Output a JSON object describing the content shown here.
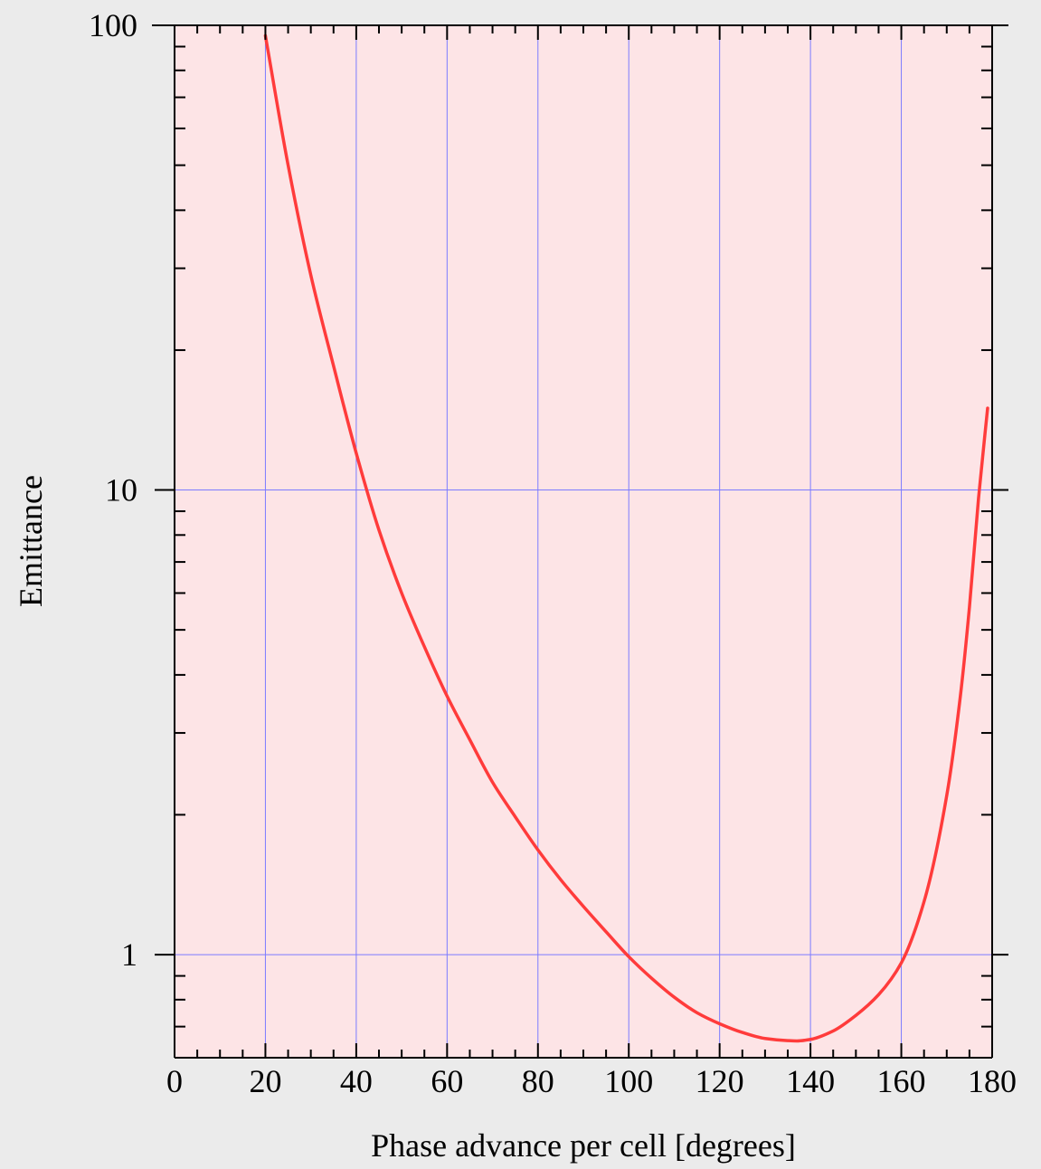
{
  "chart_data": {
    "type": "line",
    "title": "",
    "xlabel": "Phase advance per cell [degrees]",
    "ylabel": "Emittance",
    "xlim": [
      0,
      180
    ],
    "ylim": [
      0.6,
      100
    ],
    "yscale": "log",
    "grid": true,
    "x_ticks": [
      0,
      20,
      40,
      60,
      80,
      100,
      120,
      140,
      160,
      180
    ],
    "x_tick_labels": [
      "0",
      "20",
      "40",
      "60",
      "80",
      "100",
      "120",
      "140",
      "160",
      "180"
    ],
    "y_ticks": [
      1,
      10,
      100
    ],
    "y_tick_labels": [
      "1",
      "10",
      "100"
    ],
    "series": [
      {
        "color": "#ff3b3b",
        "x": [
          20,
          25,
          30,
          35,
          40,
          45,
          50,
          55,
          60,
          65,
          70,
          75,
          80,
          85,
          90,
          95,
          100,
          105,
          110,
          115,
          120,
          125,
          130,
          135,
          137,
          140,
          145,
          150,
          155,
          160,
          165,
          170,
          173,
          175,
          177,
          179
        ],
        "y": [
          95,
          50,
          29,
          18.5,
          12,
          8.2,
          6.0,
          4.6,
          3.6,
          2.9,
          2.35,
          1.98,
          1.68,
          1.45,
          1.27,
          1.12,
          0.99,
          0.89,
          0.81,
          0.75,
          0.71,
          0.68,
          0.66,
          0.653,
          0.652,
          0.657,
          0.685,
          0.74,
          0.82,
          0.96,
          1.3,
          2.2,
          3.6,
          5.6,
          9.6,
          15
        ]
      }
    ]
  },
  "colors": {
    "page_background": "#ebebeb",
    "plot_background": "#fde4e6",
    "grid": "#7b7bff",
    "axis": "#000000",
    "line": "#ff3b3b"
  }
}
